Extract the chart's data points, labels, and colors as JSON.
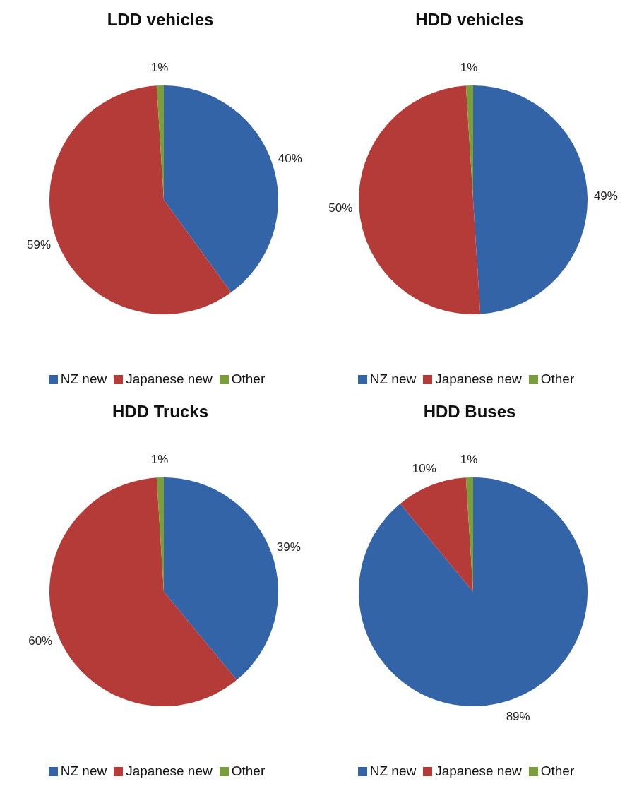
{
  "chart_data": [
    {
      "type": "pie",
      "title": "LDD vehicles",
      "categories": [
        "NZ new",
        "Japanese new",
        "Other"
      ],
      "values": [
        40,
        59,
        1
      ],
      "colors": [
        "#3364a8",
        "#b53b38",
        "#7a9e3c"
      ],
      "value_labels": [
        "40%",
        "59%",
        "1%"
      ],
      "legend": "bottom"
    },
    {
      "type": "pie",
      "title": "HDD vehicles",
      "categories": [
        "NZ new",
        "Japanese new",
        "Other"
      ],
      "values": [
        49,
        50,
        1
      ],
      "colors": [
        "#3364a8",
        "#b53b38",
        "#7a9e3c"
      ],
      "value_labels": [
        "49%",
        "50%",
        "1%"
      ],
      "legend": "bottom"
    },
    {
      "type": "pie",
      "title": "HDD Trucks",
      "categories": [
        "NZ new",
        "Japanese new",
        "Other"
      ],
      "values": [
        39,
        60,
        1
      ],
      "colors": [
        "#3364a8",
        "#b53b38",
        "#7a9e3c"
      ],
      "value_labels": [
        "39%",
        "60%",
        "1%"
      ],
      "legend": "bottom"
    },
    {
      "type": "pie",
      "title": "HDD Buses",
      "categories": [
        "NZ new",
        "Japanese new",
        "Other"
      ],
      "values": [
        89,
        10,
        1
      ],
      "colors": [
        "#3364a8",
        "#b53b38",
        "#7a9e3c"
      ],
      "value_labels": [
        "89%",
        "10%",
        "1%"
      ],
      "legend": "bottom"
    }
  ]
}
